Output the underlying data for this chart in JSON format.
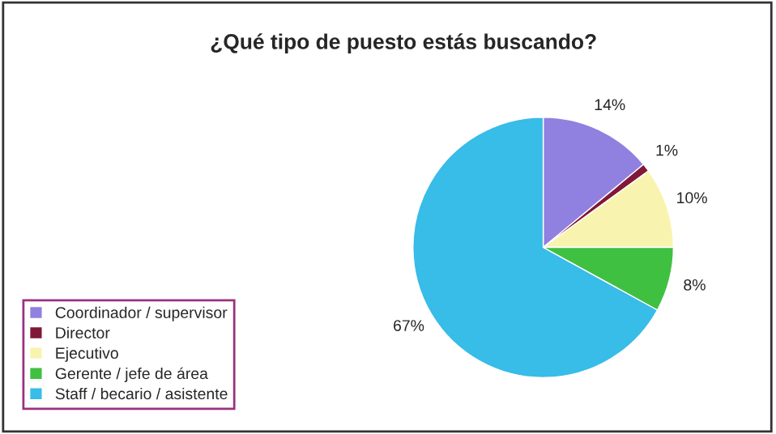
{
  "chart_data": {
    "type": "pie",
    "title": "¿Qué tipo de puesto estás buscando?",
    "categories": [
      "Coordinador / supervisor",
      "Director",
      "Ejecutivo",
      "Gerente / jefe de área",
      "Staff / becario / asistente"
    ],
    "values": [
      14,
      1,
      10,
      8,
      67
    ],
    "colors": [
      "#9080e0",
      "#801838",
      "#f8f4b0",
      "#40c040",
      "#38bce8"
    ],
    "value_labels": [
      "14%",
      "1%",
      "10%",
      "8%",
      "67%"
    ],
    "legend": "bottom left"
  }
}
